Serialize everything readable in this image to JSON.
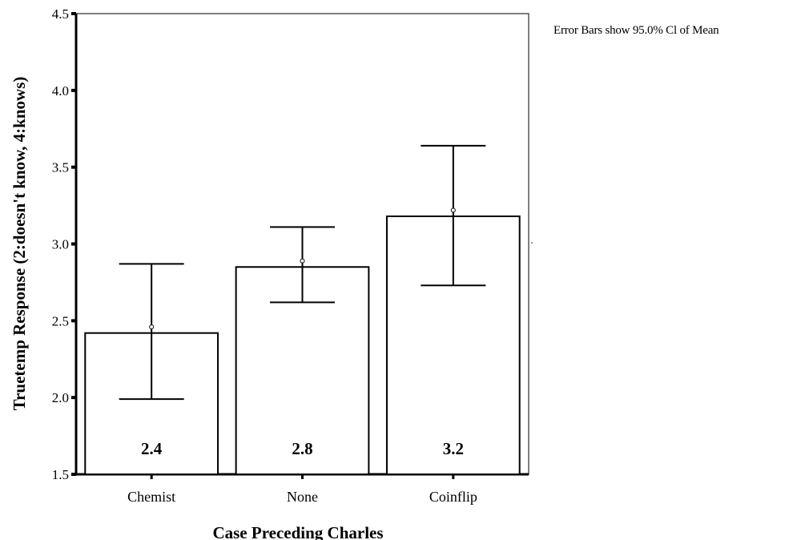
{
  "note": "Error Bars show 95.0% Cl of Mean",
  "chart_data": {
    "type": "bar",
    "title": "",
    "xlabel": "Case Preceding Charles",
    "ylabel": "Truetemp Response (2:doesn't know, 4:knows)",
    "ylim": [
      1.5,
      4.5
    ],
    "yticks": [
      1.5,
      2.0,
      2.5,
      3.0,
      3.5,
      4.0,
      4.5
    ],
    "ytick_labels": [
      "1.5",
      "2.0",
      "2.5",
      "3.0",
      "3.5",
      "4.0",
      "4.5"
    ],
    "categories": [
      "Chemist",
      "None",
      "Coinflip"
    ],
    "values": [
      2.42,
      2.85,
      3.18
    ],
    "value_labels": [
      "2.4",
      "2.8",
      "3.2"
    ],
    "error_bars": {
      "lower": [
        1.99,
        2.62,
        2.73
      ],
      "upper": [
        2.87,
        3.11,
        3.64
      ]
    },
    "mean_markers": [
      2.46,
      2.89,
      3.22
    ],
    "grid": false,
    "legend": "none"
  }
}
